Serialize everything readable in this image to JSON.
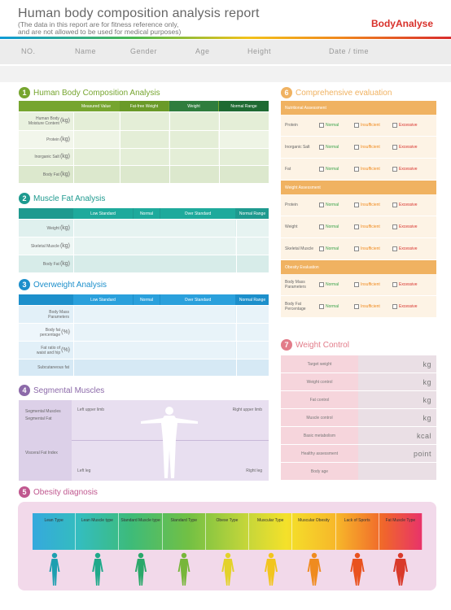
{
  "header": {
    "title": "Human body composition analysis report",
    "note_line1": "(The data in this report are for fitness reference only,",
    "note_line2": "and are not allowed to be used for medical purposes)",
    "brand": "BodyAnalyse",
    "fields": [
      "NO.",
      "Name",
      "Gender",
      "Age",
      "Height",
      "Date / time"
    ]
  },
  "colors": {
    "s1": "#76a52f",
    "s2": "#1e9a8f",
    "s3": "#1c8fcb",
    "s4": "#8c6aa9",
    "s5": "#c0588f",
    "s6": "#f0b261",
    "s7": "#e27b89"
  },
  "section1": {
    "number": "1",
    "title": "Human Body Composition Analysis",
    "columns": [
      "Measured Value",
      "Fat-free Weight",
      "Weight",
      "Normal Range"
    ],
    "rows": [
      {
        "label": "Human Body\nMoisture Content",
        "unit": "(kg)"
      },
      {
        "label": "Protein",
        "unit": "(kg)"
      },
      {
        "label": "Inorganic Salt",
        "unit": "(kg)"
      },
      {
        "label": "Body Fat",
        "unit": "(kg)"
      }
    ]
  },
  "section2": {
    "number": "2",
    "title": "Muscle Fat Analysis",
    "columns": [
      "Low Standard",
      "Normal",
      "Over Standard",
      "Normal Range"
    ],
    "rows": [
      {
        "label": "Weight",
        "unit": "(kg)"
      },
      {
        "label": "Skeletal Muscle",
        "unit": "(kg)"
      },
      {
        "label": "Body Fat",
        "unit": "(kg)"
      }
    ]
  },
  "section3": {
    "number": "3",
    "title": "Overweight Analysis",
    "columns": [
      "Low Standard",
      "Normal",
      "Over Standard",
      "Normal Range"
    ],
    "rows": [
      {
        "label": "Body Mass\nParameters",
        "unit": ""
      },
      {
        "label": "Body fat\npercentage",
        "unit": "(%)"
      },
      {
        "label": "Fat ratio of\nwaist and hip",
        "unit": "(%)"
      },
      {
        "label": "Subcutaneous fat",
        "unit": ""
      }
    ]
  },
  "section4": {
    "number": "4",
    "title": "Segmental Muscles",
    "left_labels": [
      "Segmental Muscles",
      "Segmental Fat",
      "Visceral Fat Index"
    ],
    "left_upper": "Left upper limb",
    "right_upper": "Right upper limb",
    "left_leg": "Left leg",
    "right_leg": "Right leg"
  },
  "section5": {
    "number": "5",
    "title": "Obesity diagnosis",
    "types": [
      "Lean Type",
      "Lean Muscle type",
      "Standard Muscle type",
      "Standard Type",
      "Obese Type",
      "Muscular Type",
      "Muscular Obesity",
      "Lack of Sports",
      "Fat Muscle Type"
    ],
    "figure_colors": [
      "#1d9fb0",
      "#1fa98a",
      "#2aa86a",
      "#77b63a",
      "#e3d22a",
      "#f2c51e",
      "#ef8b1f",
      "#e9521e",
      "#d93a2a"
    ]
  },
  "section6": {
    "number": "6",
    "title": "Comprehensive evaluation",
    "options": [
      "Normal",
      "Insufficient",
      "Excessive"
    ],
    "option_colors": [
      "#3aa34a",
      "#f08a1e",
      "#d8302a"
    ],
    "groups": [
      {
        "header": "Nutritional Assessment",
        "rows": [
          "Protein",
          "Inorganic Salt",
          "Fat"
        ]
      },
      {
        "header": "Weight Assessment",
        "rows": [
          "Protein",
          "Weight",
          "Skeletal Muscle"
        ]
      },
      {
        "header": "Obesity Evaluation",
        "rows": [
          "Body Mass\nParameters",
          "Body Fat\nPercentage"
        ]
      }
    ]
  },
  "section7": {
    "number": "7",
    "title": "Weight Control",
    "rows": [
      {
        "label": "Target weight",
        "unit": "kg"
      },
      {
        "label": "Weight control",
        "unit": "kg"
      },
      {
        "label": "Fat control",
        "unit": "kg"
      },
      {
        "label": "Muscle control",
        "unit": "kg"
      },
      {
        "label": "Basic metabolism",
        "unit": "kcal"
      },
      {
        "label": "Healthy assessment",
        "unit": "point"
      },
      {
        "label": "Body age",
        "unit": ""
      }
    ]
  }
}
